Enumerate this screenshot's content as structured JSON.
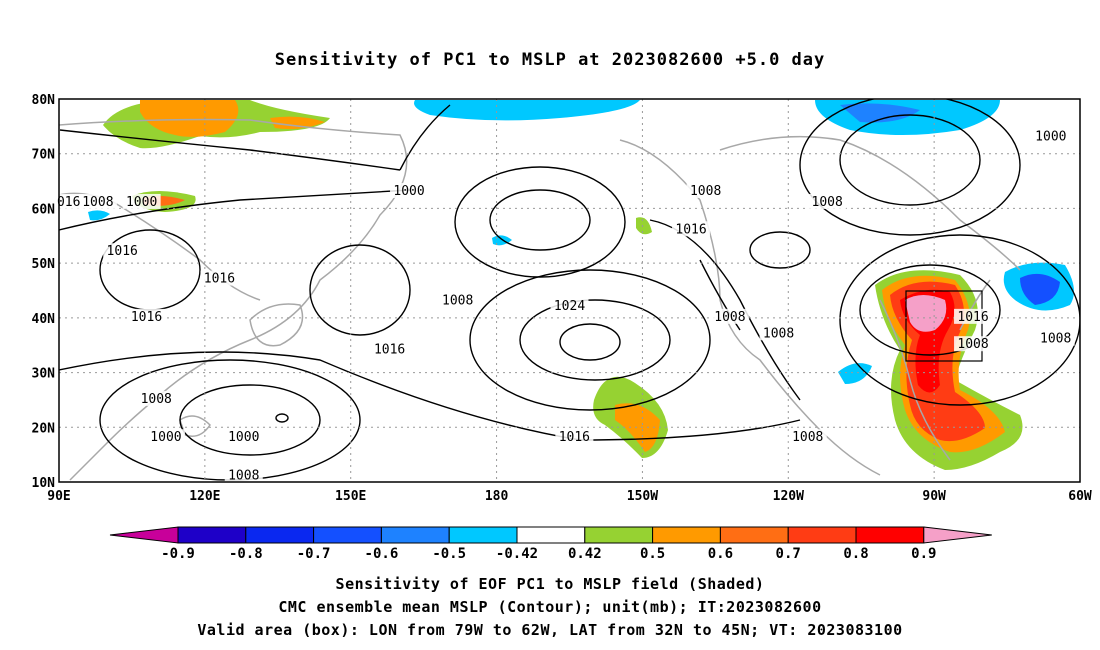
{
  "title": "Sensitivity of PC1 to MSLP at 2023082600 +5.0 day",
  "map": {
    "lon_labels": [
      "90E",
      "120E",
      "150E",
      "180",
      "150W",
      "120W",
      "90W",
      "60W"
    ],
    "lat_labels": [
      "80N",
      "70N",
      "60N",
      "50N",
      "40N",
      "30N",
      "20N",
      "10N"
    ],
    "lon_range": [
      90,
      300
    ],
    "lat_range": [
      10,
      80
    ],
    "contour_labels": [
      {
        "text": "1000",
        "lon": 162,
        "lat": 63
      },
      {
        "text": "1000",
        "lon": 107,
        "lat": 61
      },
      {
        "text": "1008",
        "lon": 98,
        "lat": 61
      },
      {
        "text": "016",
        "lon": -1,
        "lat": 61
      },
      {
        "text": "1016",
        "lon": 103,
        "lat": 52
      },
      {
        "text": "1016",
        "lon": 123,
        "lat": 47
      },
      {
        "text": "1016",
        "lon": 108,
        "lat": 40
      },
      {
        "text": "1008",
        "lon": 172,
        "lat": 43
      },
      {
        "text": "1024",
        "lon": 195,
        "lat": 42
      },
      {
        "text": "1016",
        "lon": 158,
        "lat": 34
      },
      {
        "text": "1008",
        "lon": 110,
        "lat": 25
      },
      {
        "text": "1000",
        "lon": 112,
        "lat": 18
      },
      {
        "text": "1000",
        "lon": 128,
        "lat": 18
      },
      {
        "text": "1008",
        "lon": 128,
        "lat": 11
      },
      {
        "text": "1016",
        "lon": 196,
        "lat": 18
      },
      {
        "text": "1008",
        "lon": 223,
        "lat": 63
      },
      {
        "text": "1008",
        "lon": 248,
        "lat": 61
      },
      {
        "text": "1016",
        "lon": 220,
        "lat": 56
      },
      {
        "text": "1008",
        "lon": 228,
        "lat": 40
      },
      {
        "text": "1008",
        "lon": 238,
        "lat": 37
      },
      {
        "text": "1016",
        "lon": 278,
        "lat": 40
      },
      {
        "text": "1008",
        "lon": 278,
        "lat": 35
      },
      {
        "text": "1008",
        "lon": 295,
        "lat": 36
      },
      {
        "text": "1000",
        "lon": 294,
        "lat": 73
      },
      {
        "text": "1008",
        "lon": 244,
        "lat": 18
      }
    ]
  },
  "colorbar": {
    "tick_labels": [
      "-0.9",
      "-0.8",
      "-0.7",
      "-0.6",
      "-0.5",
      "-0.42",
      "0.42",
      "0.5",
      "0.6",
      "0.7",
      "0.8",
      "0.9"
    ],
    "colors": [
      "#1e00c8",
      "#0a28f0",
      "#1450ff",
      "#1e82ff",
      "#00c8ff",
      "#ffffff",
      "#96d232",
      "#ff9a00",
      "#ff6e14",
      "#ff3c14",
      "#ff0000"
    ],
    "low_end_color": "#c8009a",
    "high_end_color": "#f5a0c8"
  },
  "captions": {
    "line1": "Sensitivity of EOF PC1 to MSLP field (Shaded)",
    "line2": "CMC ensemble mean MSLP (Contour); unit(mb); IT:2023082600",
    "line3": "Valid area (box): LON from 79W to 62W, LAT from 32N to 45N; VT: 2023083100"
  }
}
